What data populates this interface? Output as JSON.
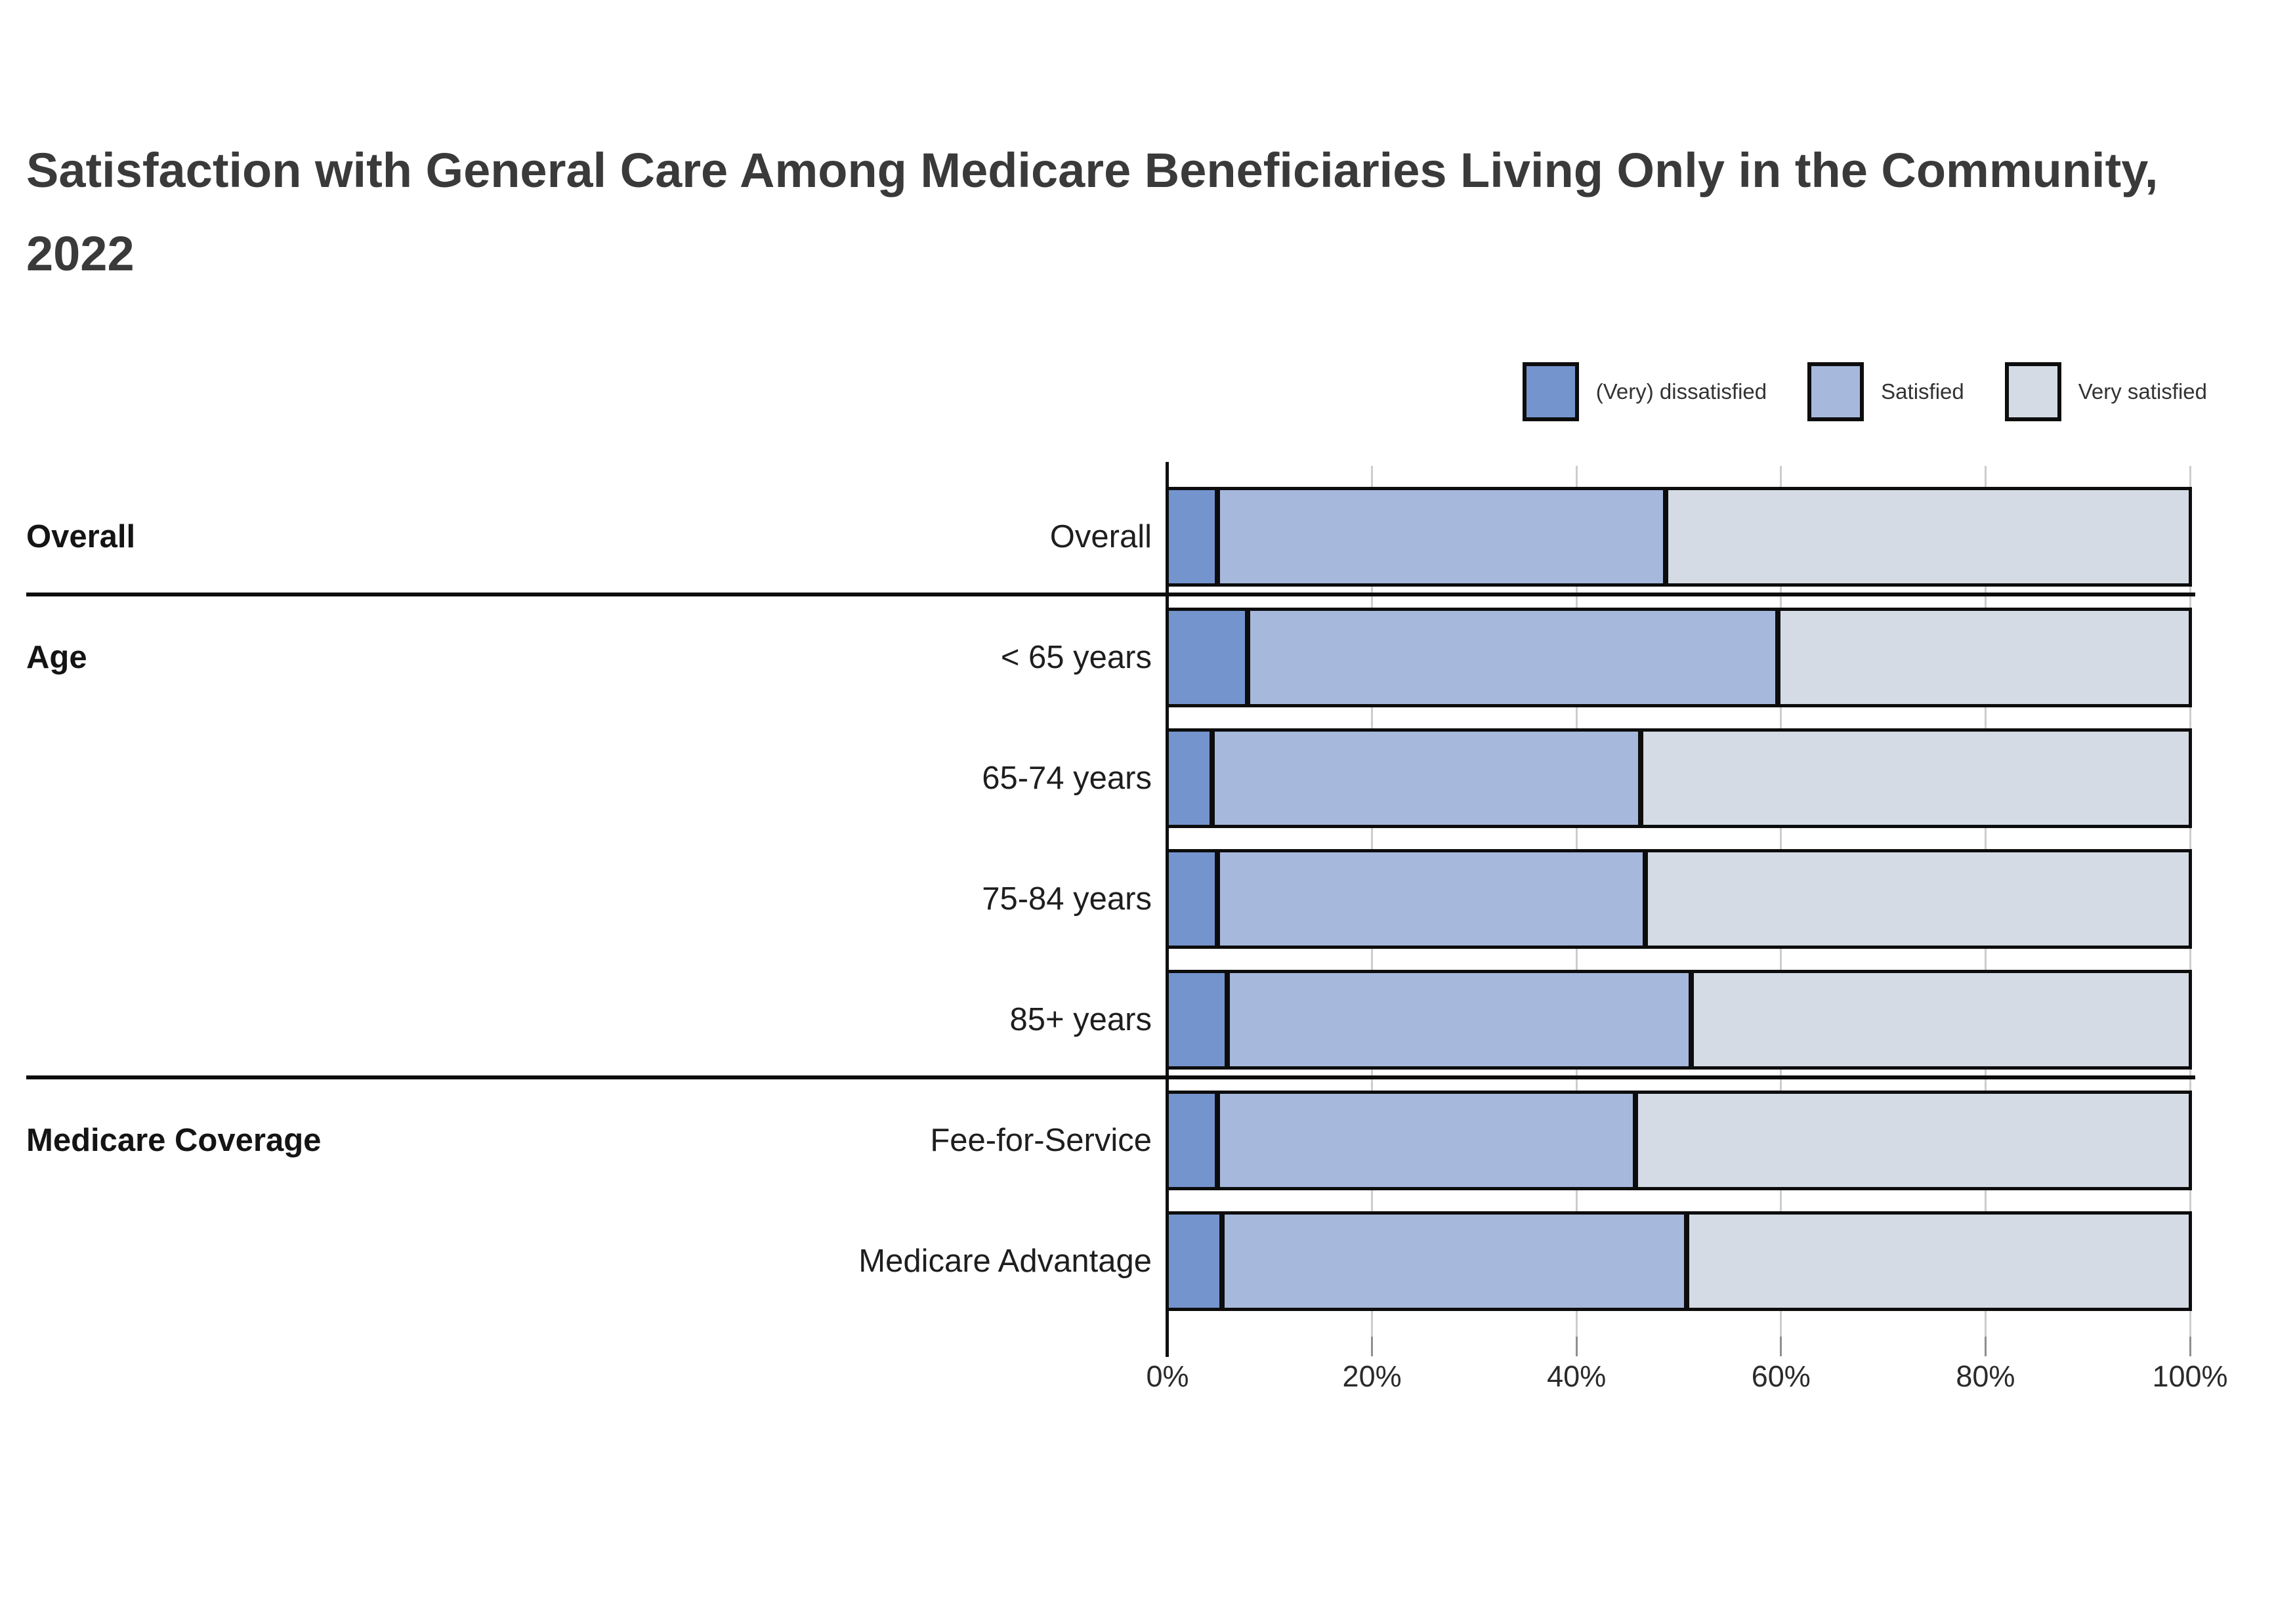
{
  "page": {
    "background_color": "#ffffff"
  },
  "title": "Satisfaction with General Care Among Medicare Beneficiaries Living Only in the Community, 2022",
  "legend": {
    "items": [
      {
        "label": "(Very) dissatisfied",
        "color": "#7494CE"
      },
      {
        "label": "Satisfied",
        "color": "#A6B8DC"
      },
      {
        "label": "Very satisfied",
        "color": "#D4DBE5"
      }
    ]
  },
  "chart_data": {
    "type": "bar",
    "orientation": "horizontal",
    "stacked": true,
    "title": "Satisfaction with General Care Among Medicare Beneficiaries Living Only in the Community, 2022",
    "categories": [
      "Overall",
      "< 65 years",
      "65-74 years",
      "75-84 years",
      "85+ years",
      "Fee-for-Service",
      "Medicare Advantage"
    ],
    "groups": [
      {
        "label": "Overall",
        "rows": [
          "Overall"
        ]
      },
      {
        "label": "Age",
        "rows": [
          "< 65 years",
          "65-74 years",
          "75-84 years",
          "85+ years"
        ]
      },
      {
        "label": "Medicare Coverage",
        "rows": [
          "Fee-for-Service",
          "Medicare Advantage"
        ]
      }
    ],
    "series": [
      {
        "name": "(Very) dissatisfied",
        "color": "#7494CE",
        "values": [
          5,
          8,
          4.5,
          5,
          6,
          5,
          5.5
        ]
      },
      {
        "name": "Satisfied",
        "color": "#A6B8DC",
        "values": [
          44,
          52,
          42,
          42,
          45.5,
          41,
          45.5
        ]
      },
      {
        "name": "Very satisfied",
        "color": "#D4DBE5",
        "values": [
          51,
          40,
          53.5,
          53,
          48.5,
          54,
          49
        ]
      }
    ],
    "x_ticks": [
      "0%",
      "20%",
      "40%",
      "60%",
      "80%",
      "100%"
    ],
    "x_tick_values": [
      0,
      20,
      40,
      60,
      80,
      100
    ],
    "xlim": [
      0,
      100
    ],
    "grid": "vertical",
    "legend_position": "top-right",
    "axis_line_color": "#101010",
    "gridline_color": "#cdcdcd",
    "bar_border_color": "#0d0d0d"
  }
}
